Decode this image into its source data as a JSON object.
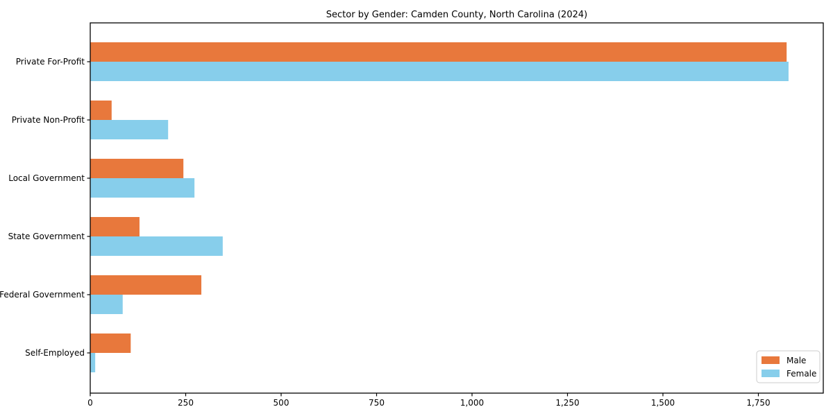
{
  "chart_data": {
    "type": "bar",
    "orientation": "horizontal",
    "title": "Sector by Gender: Camden County, North Carolina (2024)",
    "categories": [
      "Private For-Profit",
      "Private Non-Profit",
      "Local Government",
      "State Government",
      "Federal Government",
      "Self-Employed"
    ],
    "series": [
      {
        "name": "Male",
        "color": "#e8783c",
        "values": [
          1824,
          56,
          244,
          129,
          291,
          106
        ]
      },
      {
        "name": "Female",
        "color": "#87ceeb",
        "values": [
          1829,
          204,
          273,
          347,
          85,
          13
        ]
      }
    ],
    "xlabel": "",
    "ylabel": "",
    "xlim": [
      0,
      1920
    ],
    "xticks": [
      0,
      250,
      500,
      750,
      1000,
      1250,
      1500,
      1750
    ],
    "xtick_labels": [
      "0",
      "250",
      "500",
      "750",
      "1,000",
      "1,250",
      "1,500",
      "1,750"
    ],
    "grid": false,
    "legend": {
      "position": "lower right",
      "entries": [
        "Male",
        "Female"
      ]
    },
    "colors": {
      "background": "#ffffff",
      "axis": "#000000",
      "legend_border": "#cccccc",
      "male": "#e8783c",
      "female": "#87ceeb"
    }
  }
}
